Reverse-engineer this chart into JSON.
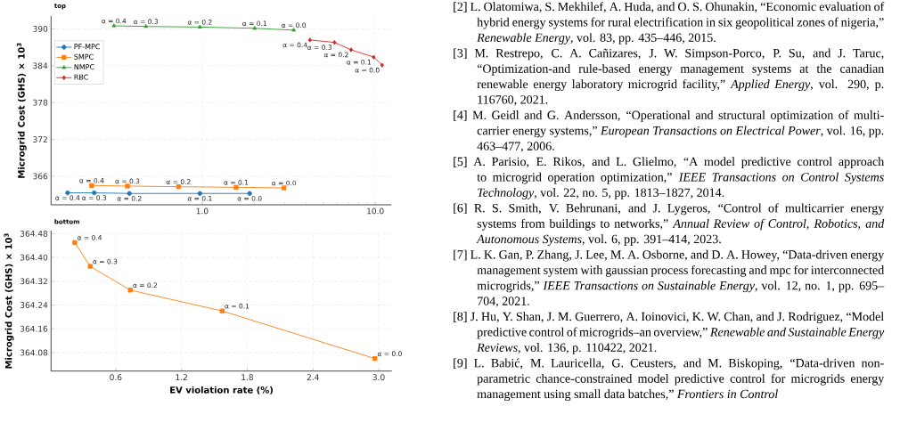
{
  "chart_data": [
    {
      "type": "line",
      "title": "top",
      "ylabel": "Microgrid Cost (GHS) × 10$^{3}$",
      "log": "x",
      "grid": true,
      "legend": "top left",
      "xlim": [
        0.134,
        12.4
      ],
      "ylim": [
        361.35,
        392.1
      ],
      "xticks": [
        {
          "value": 1,
          "label": "1.0"
        },
        {
          "value": 10,
          "label": "10.0"
        }
      ],
      "yticks": [
        366,
        372,
        378,
        384,
        390
      ],
      "series": [
        {
          "name": "PF-MPC",
          "color": "#1f77b4",
          "marker": "circle",
          "x": [
            0.167,
            0.238,
            0.38,
            0.97,
            1.88
          ],
          "values": [
            363.3,
            363.3,
            363.2,
            363.2,
            363.2
          ]
        },
        {
          "name": "SMPC",
          "color": "#ff7f0e",
          "marker": "square",
          "x": [
            0.23,
            0.37,
            0.73,
            1.57,
            2.97
          ],
          "values": [
            364.5,
            364.4,
            364.3,
            364.2,
            364.1
          ]
        },
        {
          "name": "NMPC",
          "color": "#2ca02c",
          "marker": "triangle",
          "x": [
            0.309,
            0.473,
            0.97,
            2.01,
            3.38
          ],
          "values": [
            390.5,
            390.4,
            390.3,
            390.1,
            389.8
          ]
        },
        {
          "name": "RBC",
          "color": "#d62728",
          "marker": "diamond",
          "x": [
            4.19,
            5.81,
            7.25,
            9.8,
            10.95
          ],
          "values": [
            388.2,
            387.8,
            386.6,
            385.4,
            384.1
          ]
        }
      ],
      "annotations": [
        {
          "text": "α = 0.4",
          "x": 0.167,
          "y": 363.3
        },
        {
          "text": "α = 0.3",
          "x": 0.238,
          "y": 363.3
        },
        {
          "text": "α = 0.2",
          "x": 0.38,
          "y": 363.2
        },
        {
          "text": "α = 0.1",
          "x": 0.97,
          "y": 363.2
        },
        {
          "text": "α = 0.0",
          "x": 1.88,
          "y": 363.2
        },
        {
          "text": "α = 0.4",
          "x": 0.23,
          "y": 364.5
        },
        {
          "text": "α = 0.3",
          "x": 0.37,
          "y": 364.4
        },
        {
          "text": "α = 0.2",
          "x": 0.73,
          "y": 364.3
        },
        {
          "text": "α = 0.1",
          "x": 1.57,
          "y": 364.2
        },
        {
          "text": "α = 0.0",
          "x": 2.97,
          "y": 364.1
        },
        {
          "text": "α = 0.4",
          "x": 0.309,
          "y": 390.5
        },
        {
          "text": "α = 0.3",
          "x": 0.473,
          "y": 390.4
        },
        {
          "text": "α = 0.2",
          "x": 0.97,
          "y": 390.3
        },
        {
          "text": "α = 0.1",
          "x": 2.01,
          "y": 390.1
        },
        {
          "text": "α = 0.0",
          "x": 3.38,
          "y": 389.8
        },
        {
          "text": "α = 0.4",
          "x": 4.19,
          "y": 388.2
        },
        {
          "text": "α = 0.3",
          "x": 5.81,
          "y": 387.8
        },
        {
          "text": "α = 0.2",
          "x": 7.25,
          "y": 386.6
        },
        {
          "text": "α = 0.1",
          "x": 9.8,
          "y": 385.4
        },
        {
          "text": "α = 0.0",
          "x": 10.95,
          "y": 384.1
        }
      ]
    },
    {
      "type": "line",
      "title": "bottom",
      "xlabel": "EV violation rate (%)",
      "ylabel": "Microgrid Cost (GHS) × 10$^{3}$",
      "grid": true,
      "xlim": [
        0.01,
        3.12
      ],
      "ylim": [
        364.018,
        364.49
      ],
      "xticks": [
        0.6,
        1.2,
        1.8,
        2.4,
        {
          "value": 3,
          "label": "3.0"
        }
      ],
      "yticks": [
        {
          "value": 364.08,
          "label": "364.08"
        },
        {
          "value": 364.16,
          "label": "364.16"
        },
        {
          "value": 364.24,
          "label": "364.24"
        },
        {
          "value": 364.32,
          "label": "364.32"
        },
        {
          "value": 364.4,
          "label": "364.40"
        },
        {
          "value": 364.48,
          "label": "364.48"
        }
      ],
      "series": [
        {
          "color": "#ff7f0e",
          "marker": "square",
          "x": [
            0.226,
            0.367,
            0.733,
            1.571,
            2.965
          ],
          "values": [
            364.45,
            364.37,
            364.29,
            364.22,
            364.06
          ]
        }
      ],
      "annotations": [
        {
          "text": "α = 0.4",
          "x": 0.226,
          "y": 364.45
        },
        {
          "text": "α = 0.3",
          "x": 0.367,
          "y": 364.37
        },
        {
          "text": "α = 0.2",
          "x": 0.733,
          "y": 364.29
        },
        {
          "text": "α = 0.1",
          "x": 1.571,
          "y": 364.22
        },
        {
          "text": "α = 0.0",
          "x": 2.965,
          "y": 364.06
        }
      ]
    },
    {
      "type": "other",
      "annotations": [
        "[2] L. Olatomiwa, S. Mekhilef, A. Huda, and O. S. Ohunakin, “Economic evaluation of hybrid energy systems for rural electrification in six geopolitical zones of nigeria,” *Renewable Energy*, vol. 83, pp. 435–446, 2015.",
        "[3] M. Restrepo, C. A. Cañizares, J. W. Simpson-Porco, P. Su, and J. Taruc, “Optimization-and rule-based energy management systems at the canadian renewable energy laboratory microgrid facility,” *Applied Energy*, vol. 290, p. 116760, 2021.",
        "[4] M. Geidl and G. Andersson, “Operational and structural optimization of multi-carrier energy systems,” *European Transactions on Electrical Power*, vol. 16, pp. 463–477, 2006.",
        "[5] A. Parisio, E. Rikos, and L. Glielmo, “A model predictive control approach to microgrid operation optimization,” *IEEE Transactions on Control Systems Technology*, vol. 22, no. 5, pp. 1813–1827, 2014.",
        "[6] R. S. Smith, V. Behrunani, and J. Lygeros, “Control of multicarrier energy systems from buildings to networks,” *Annual Review of Control, Robotics, and Autonomous Systems*, vol. 6, pp. 391–414, 2023.",
        "[7] L. K. Gan, P. Zhang, J. Lee, M. A. Osborne, and D. A. Howey, “Data-driven energy management system with gaussian process forecasting and mpc for interconnected microgrids,” *IEEE Transactions on Sustainable Energy*, vol. 12, no. 1, pp. 695–704, 2021.",
        "[8] J. Hu, Y. Shan, J. M. Guerrero, A. Ioinovici, K. W. Chan, and J. Rodriguez, “Model predictive control of microgrids–an overview,” *Renewable and Sustainable Energy Reviews*, vol. 136, p. 110422, 2021.",
        "[9] L. Babić, M. Lauricella, G. Ceusters, and M. Biskoping, “Data-driven non-parametric chance-constrained model predictive control for microgrids energy management using small data batches,” *Frontiers in Control*"
      ]
    }
  ]
}
